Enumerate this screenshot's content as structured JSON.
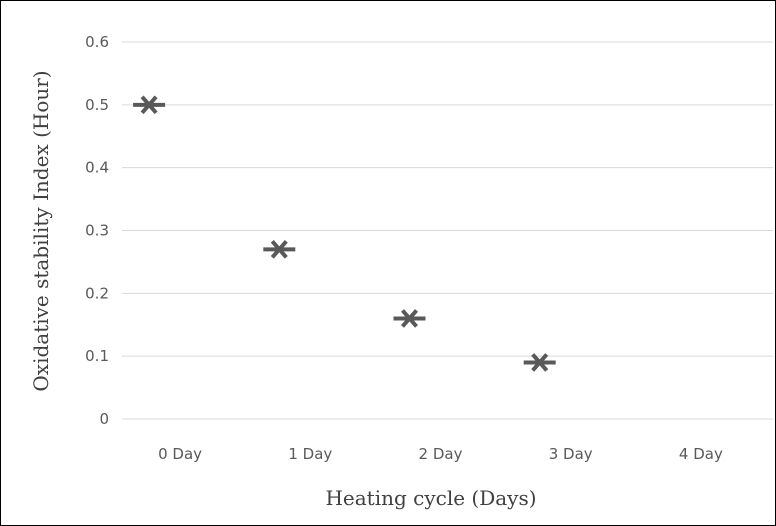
{
  "chart_data": {
    "type": "scatter",
    "categories": [
      "0 Day",
      "1 Day",
      "2 Day",
      "3 Day",
      "4 Day"
    ],
    "x": [
      "0 Day",
      "1 Day",
      "2 Day",
      "3 Day"
    ],
    "values": [
      0.5,
      0.27,
      0.16,
      0.09
    ],
    "marker": "asterisk",
    "xlabel": "Heating cycle (Days)",
    "ylabel": "Oxidative stability Index (Hour)",
    "ylim": [
      0,
      0.6
    ],
    "yticks": [
      "0",
      "0.1",
      "0.2",
      "0.3",
      "0.4",
      "0.5",
      "0.6"
    ],
    "grid": true,
    "legend": "none",
    "colors": {
      "marker": "#595959",
      "grid": "#d9d9d9",
      "text": "#595959",
      "title": "#404040",
      "frame": "#000000"
    }
  }
}
